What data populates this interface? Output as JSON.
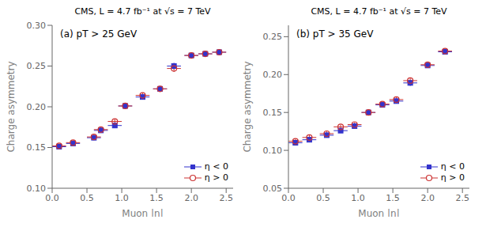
{
  "chart_data": [
    {
      "type": "scatter",
      "title": "CMS,  L = 4.7 fb⁻¹ at √s = 7 TeV",
      "annotations": [
        "(a)  pT > 25 GeV"
      ],
      "x_label": "Muon |η|",
      "y_label": "Charge asymmetry",
      "xlim": [
        0,
        2.6
      ],
      "xticks": [
        {
          "value": 0,
          "label": "0.0"
        },
        0.5,
        {
          "value": 1.0,
          "label": "1.0"
        },
        1.5,
        {
          "value": 2.0,
          "label": "2.0"
        },
        2.5
      ],
      "ylim": [
        0.1,
        0.3
      ],
      "yticks": [
        {
          "value": 0.1,
          "label": "0.10"
        },
        0.15,
        {
          "value": 0.2,
          "label": "0.20"
        },
        0.25,
        {
          "value": 0.3,
          "label": "0.30"
        }
      ],
      "grid": false,
      "legend": "lower right",
      "series": [
        {
          "name": "η < 0",
          "color": "#3333cc",
          "marker": "square",
          "x": [
            0.1,
            0.3,
            0.6,
            0.7,
            0.9,
            1.05,
            1.3,
            1.55,
            1.75,
            2.0,
            2.2,
            2.4
          ],
          "values": [
            0.151,
            0.155,
            0.162,
            0.171,
            0.177,
            0.201,
            0.212,
            0.222,
            0.25,
            0.263,
            0.265,
            0.267
          ],
          "xerr": [
            0.1,
            0.1,
            0.1,
            0.1,
            0.1,
            0.1,
            0.1,
            0.1,
            0.1,
            0.1,
            0.1,
            0.1
          ],
          "yerr": [
            0.003,
            0.003,
            0.003,
            0.003,
            0.003,
            0.003,
            0.003,
            0.003,
            0.004,
            0.003,
            0.003,
            0.003
          ]
        },
        {
          "name": "η > 0",
          "color": "#cc3333",
          "marker": "circle",
          "x": [
            0.1,
            0.3,
            0.6,
            0.7,
            0.9,
            1.05,
            1.3,
            1.55,
            1.75,
            2.0,
            2.2,
            2.4
          ],
          "values": [
            0.152,
            0.156,
            0.163,
            0.172,
            0.182,
            0.201,
            0.214,
            0.222,
            0.247,
            0.263,
            0.265,
            0.267
          ],
          "xerr": [
            0.1,
            0.1,
            0.1,
            0.1,
            0.1,
            0.1,
            0.1,
            0.1,
            0.1,
            0.1,
            0.1,
            0.1
          ],
          "yerr": [
            0.003,
            0.003,
            0.003,
            0.003,
            0.003,
            0.003,
            0.003,
            0.003,
            0.004,
            0.003,
            0.003,
            0.003
          ]
        }
      ]
    },
    {
      "type": "scatter",
      "title": "CMS,  L = 4.7 fb⁻¹ at √s = 7 TeV",
      "annotations": [
        "(b)  pT > 35 GeV"
      ],
      "x_label": "Muon |η|",
      "y_label": "Charge asymmetry",
      "xlim": [
        0,
        2.6
      ],
      "xticks": [
        {
          "value": 0,
          "label": "0.0"
        },
        0.5,
        {
          "value": 1.0,
          "label": "1.0"
        },
        1.5,
        {
          "value": 2.0,
          "label": "2.0"
        },
        2.5
      ],
      "ylim": [
        0.05,
        0.265
      ],
      "yticks": [
        0.05,
        {
          "value": 0.1,
          "label": "0.10"
        },
        0.15,
        {
          "value": 0.2,
          "label": "0.20"
        },
        0.25
      ],
      "grid": false,
      "legend": "lower right",
      "series": [
        {
          "name": "η < 0",
          "color": "#3333cc",
          "marker": "square",
          "x": [
            0.1,
            0.3,
            0.55,
            0.75,
            0.95,
            1.15,
            1.35,
            1.55,
            1.75,
            2.0,
            2.25
          ],
          "values": [
            0.11,
            0.114,
            0.12,
            0.126,
            0.132,
            0.15,
            0.16,
            0.165,
            0.189,
            0.212,
            0.23
          ],
          "xerr": [
            0.1,
            0.1,
            0.1,
            0.1,
            0.1,
            0.1,
            0.1,
            0.1,
            0.1,
            0.1,
            0.1
          ],
          "yerr": [
            0.003,
            0.003,
            0.003,
            0.003,
            0.003,
            0.003,
            0.003,
            0.003,
            0.004,
            0.003,
            0.003
          ]
        },
        {
          "name": "η > 0",
          "color": "#cc3333",
          "marker": "circle",
          "x": [
            0.1,
            0.3,
            0.55,
            0.75,
            0.95,
            1.15,
            1.35,
            1.55,
            1.75,
            2.0,
            2.25
          ],
          "values": [
            0.112,
            0.117,
            0.122,
            0.131,
            0.134,
            0.15,
            0.161,
            0.167,
            0.192,
            0.213,
            0.231
          ],
          "xerr": [
            0.1,
            0.1,
            0.1,
            0.1,
            0.1,
            0.1,
            0.1,
            0.1,
            0.1,
            0.1,
            0.1
          ],
          "yerr": [
            0.003,
            0.003,
            0.003,
            0.003,
            0.003,
            0.003,
            0.003,
            0.003,
            0.004,
            0.003,
            0.003
          ]
        }
      ]
    }
  ]
}
